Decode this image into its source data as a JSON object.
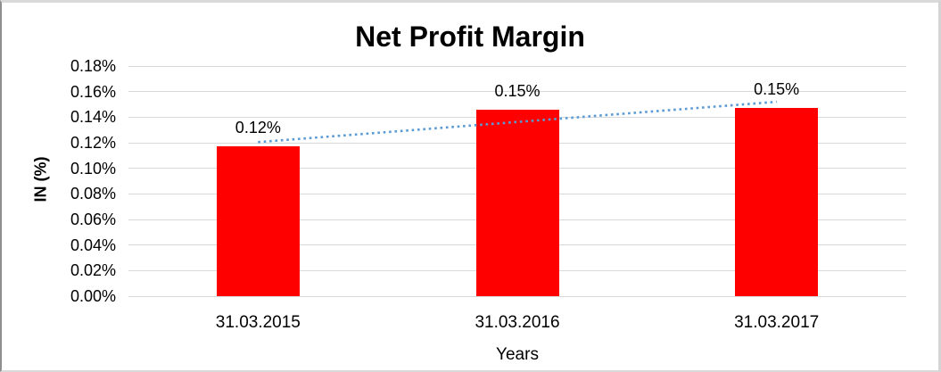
{
  "chart_data": {
    "type": "bar",
    "title": "Net Profit Margin",
    "xlabel": "Years",
    "ylabel": "IN (%)",
    "unit": "%",
    "categories": [
      "31.03.2015",
      "31.03.2016",
      "31.03.2017"
    ],
    "values": [
      0.117,
      0.146,
      0.147
    ],
    "data_labels": [
      "0.12%",
      "0.15%",
      "0.15%"
    ],
    "ylim": [
      0,
      0.18
    ],
    "ytick_step": 0.02,
    "ytick_labels_top_to_bottom": [
      "0.18%",
      "0.16%",
      "0.14%",
      "0.12%",
      "0.10%",
      "0.08%",
      "0.06%",
      "0.04%",
      "0.02%",
      "0.00%"
    ],
    "grid": true,
    "legend": "none",
    "colors": {
      "bar": "#ff0000",
      "trendline": "#5b9bd5",
      "gridline": "#d9d9d9",
      "text": "#000000",
      "frame_border": "#d9d9d9"
    },
    "trendline": {
      "style": "dotted",
      "shape": "linear",
      "start_value": 0.1205,
      "end_value": 0.152,
      "spans": "first-category-center to last-category-center"
    }
  }
}
